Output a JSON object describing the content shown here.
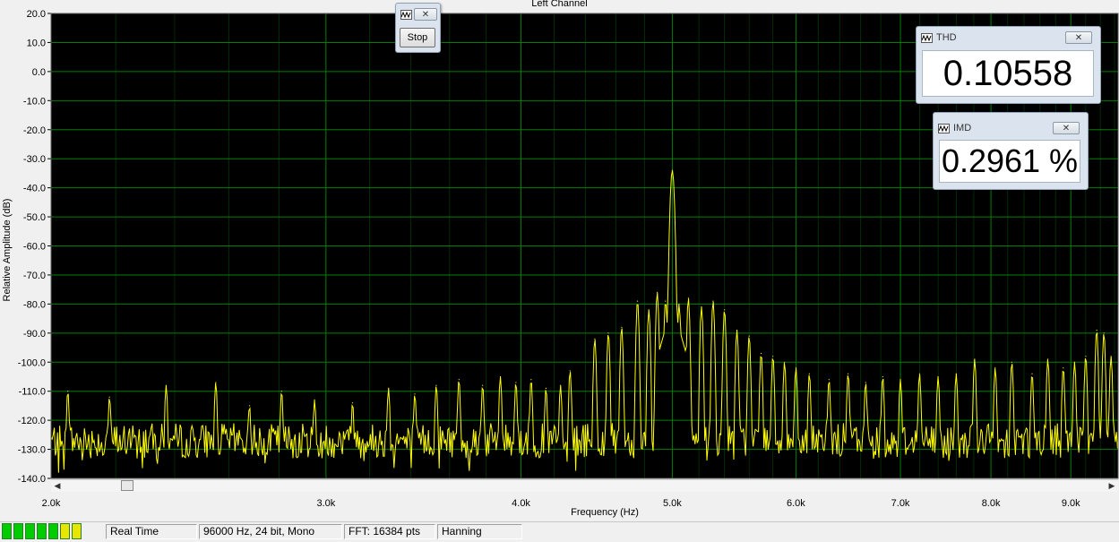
{
  "chart_data": {
    "type": "line",
    "title": "Left Channel",
    "xlabel": "Frequency (Hz)",
    "ylabel": "Relative Amplitude (dB)",
    "xlim": [
      2000,
      9650
    ],
    "ylim": [
      -140,
      20
    ],
    "x_scale": "log",
    "grid": true,
    "background": "#000000",
    "grid_color": "#008000",
    "line_color": "#ffff00",
    "y_ticks": [
      "20.0",
      "10.0",
      "0.0",
      "-10.0",
      "-20.0",
      "-30.0",
      "-40.0",
      "-50.0",
      "-60.0",
      "-70.0",
      "-80.0",
      "-90.0",
      "-100.0",
      "-110.0",
      "-120.0",
      "-130.0",
      "-140.0"
    ],
    "y_tick_values": [
      20,
      10,
      0,
      -10,
      -20,
      -30,
      -40,
      -50,
      -60,
      -70,
      -80,
      -90,
      -100,
      -110,
      -120,
      -130,
      -140
    ],
    "x_ticks": [
      "2.0k",
      "3.0k",
      "4.0k",
      "5.0k",
      "6.0k",
      "7.0k",
      "8.0k",
      "9.0k"
    ],
    "x_tick_values": [
      2000,
      3000,
      4000,
      5000,
      6000,
      7000,
      8000,
      9000
    ],
    "noise_floor_db": -127,
    "series": [
      {
        "peaks": [
          {
            "x": 2050,
            "y": -110
          },
          {
            "x": 2180,
            "y": -112
          },
          {
            "x": 2370,
            "y": -108
          },
          {
            "x": 2550,
            "y": -107
          },
          {
            "x": 2680,
            "y": -115
          },
          {
            "x": 2810,
            "y": -110
          },
          {
            "x": 2950,
            "y": -113
          },
          {
            "x": 3120,
            "y": -114
          },
          {
            "x": 3290,
            "y": -109
          },
          {
            "x": 3420,
            "y": -111
          },
          {
            "x": 3530,
            "y": -108
          },
          {
            "x": 3650,
            "y": -106
          },
          {
            "x": 3780,
            "y": -108
          },
          {
            "x": 3880,
            "y": -105
          },
          {
            "x": 3970,
            "y": -107
          },
          {
            "x": 4060,
            "y": -106
          },
          {
            "x": 4150,
            "y": -109
          },
          {
            "x": 4240,
            "y": -108
          },
          {
            "x": 4300,
            "y": -103
          },
          {
            "x": 4460,
            "y": -92
          },
          {
            "x": 4550,
            "y": -90
          },
          {
            "x": 4640,
            "y": -88
          },
          {
            "x": 4750,
            "y": -79
          },
          {
            "x": 4830,
            "y": -82
          },
          {
            "x": 4890,
            "y": -76
          },
          {
            "x": 4950,
            "y": -79
          },
          {
            "x": 5000,
            "y": -34
          },
          {
            "x": 5050,
            "y": -80
          },
          {
            "x": 5120,
            "y": -78
          },
          {
            "x": 5220,
            "y": -81
          },
          {
            "x": 5310,
            "y": -79
          },
          {
            "x": 5400,
            "y": -82
          },
          {
            "x": 5500,
            "y": -89
          },
          {
            "x": 5600,
            "y": -91
          },
          {
            "x": 5700,
            "y": -97
          },
          {
            "x": 5800,
            "y": -98
          },
          {
            "x": 5900,
            "y": -100
          },
          {
            "x": 6000,
            "y": -102
          },
          {
            "x": 6120,
            "y": -104
          },
          {
            "x": 6300,
            "y": -106
          },
          {
            "x": 6480,
            "y": -104
          },
          {
            "x": 6650,
            "y": -107
          },
          {
            "x": 6820,
            "y": -105
          },
          {
            "x": 7000,
            "y": -106
          },
          {
            "x": 7200,
            "y": -104
          },
          {
            "x": 7400,
            "y": -105
          },
          {
            "x": 7600,
            "y": -104
          },
          {
            "x": 7810,
            "y": -99
          },
          {
            "x": 8050,
            "y": -102
          },
          {
            "x": 8250,
            "y": -100
          },
          {
            "x": 8500,
            "y": -104
          },
          {
            "x": 8700,
            "y": -99
          },
          {
            "x": 8900,
            "y": -102
          },
          {
            "x": 9050,
            "y": -100
          },
          {
            "x": 9200,
            "y": -98
          },
          {
            "x": 9350,
            "y": -89
          },
          {
            "x": 9450,
            "y": -90
          },
          {
            "x": 9550,
            "y": -98
          }
        ]
      }
    ]
  },
  "stop_window": {
    "button_label": "Stop"
  },
  "thd_window": {
    "title": "THD",
    "value": "0.10558 %"
  },
  "imd_window": {
    "title": "IMD",
    "value": "0.2961 %"
  },
  "statusbar": {
    "level_segments": [
      "#00cc00",
      "#00cc00",
      "#00cc00",
      "#00cc00",
      "#00cc00",
      "#e6e600",
      "#e6e600"
    ],
    "mode": "Real Time",
    "format": "96000 Hz, 24 bit, Mono",
    "fft": "FFT: 16384 pts",
    "window": "Hanning"
  },
  "icons": [
    "waveform-icon",
    "close-icon",
    "scroll-left-icon",
    "scroll-right-icon"
  ]
}
